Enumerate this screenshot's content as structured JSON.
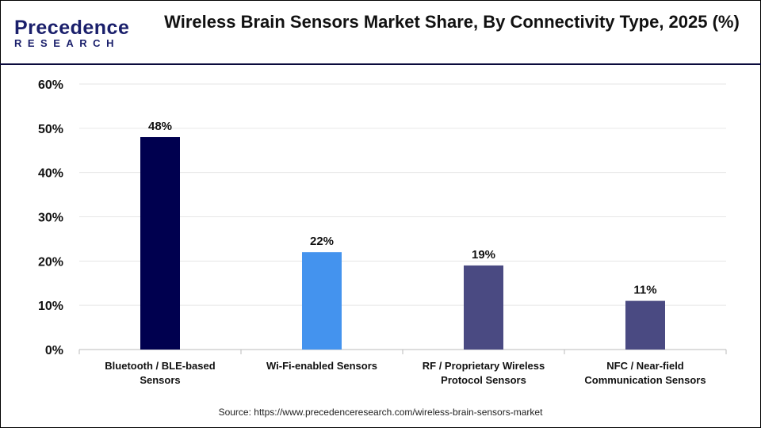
{
  "logo": {
    "line1": "Precedence",
    "line2": "RESEARCH"
  },
  "title": "Wireless Brain Sensors Market Share, By Connectivity Type, 2025 (%)",
  "source": "Source: https://www.precedenceresearch.com/wireless-brain-sensors-market",
  "chart_data": {
    "type": "bar",
    "title": "Wireless Brain Sensors Market Share, By Connectivity Type, 2025 (%)",
    "categories": [
      [
        "Bluetooth / BLE-based",
        "Sensors"
      ],
      [
        "Wi-Fi-enabled Sensors"
      ],
      [
        "RF / Proprietary Wireless",
        "Protocol Sensors"
      ],
      [
        "NFC / Near-field",
        "Communication Sensors"
      ]
    ],
    "values": [
      48,
      22,
      19,
      11
    ],
    "data_labels": [
      "48%",
      "22%",
      "19%",
      "11%"
    ],
    "colors": [
      "#00004f",
      "#4493ee",
      "#4a4a82",
      "#4a4a82"
    ],
    "yticks": [
      "0%",
      "10%",
      "20%",
      "30%",
      "40%",
      "50%",
      "60%"
    ],
    "ylim": [
      0,
      60
    ],
    "grid": true,
    "legend": "none"
  }
}
